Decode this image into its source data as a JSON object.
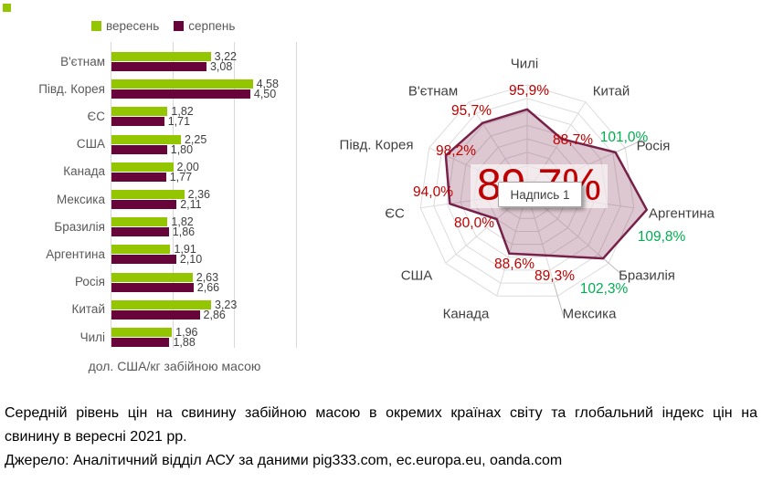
{
  "corner_mark": {
    "color": "#94C600"
  },
  "colors": {
    "september_green": "#94C600",
    "august_maroon": "#67053A",
    "radar_stroke": "#77214A",
    "radar_fill": "rgba(119,33,69,0.25)",
    "label_red": "#C00000",
    "label_green": "#00B050",
    "grid_gray": "#D9D9D9",
    "axis_text_gray": "#595959",
    "value_text_gray": "#404040"
  },
  "chart_data": [
    {
      "type": "bar",
      "orientation": "horizontal",
      "categories": [
        "В'єтнам",
        "Півд. Корея",
        "ЄС",
        "США",
        "Канада",
        "Мексика",
        "Бразилія",
        "Аргентина",
        "Росія",
        "Китай",
        "Чилі"
      ],
      "series": [
        {
          "name": "вересень",
          "color": "#94C600",
          "values": [
            3.22,
            4.58,
            1.82,
            2.25,
            2.0,
            2.36,
            1.82,
            1.91,
            2.63,
            3.23,
            1.96
          ]
        },
        {
          "name": "серпень",
          "color": "#67053A",
          "values": [
            3.08,
            4.5,
            1.71,
            1.8,
            1.77,
            2.11,
            1.86,
            2.1,
            2.66,
            2.86,
            1.88
          ]
        }
      ],
      "xlabel": "дол. США/кг забійною масою",
      "xlim": [
        0,
        6
      ],
      "gridlines": [
        0,
        2,
        4,
        6
      ],
      "value_labels_visible": true
    },
    {
      "type": "radar",
      "categories": [
        "Чилі",
        "Китай",
        "Росія",
        "Аргентина",
        "Бразилія",
        "Мексика",
        "Канада",
        "США",
        "ЄС",
        "Півд. Корея",
        "В'єтнам"
      ],
      "values": [
        95.9,
        88.7,
        101.0,
        109.8,
        102.3,
        89.3,
        88.6,
        80.0,
        94.0,
        98.2,
        95.7
      ],
      "value_suffix": "%",
      "scale": {
        "min": 65,
        "max": 105,
        "rings": 8
      },
      "center_value": "89,7%",
      "tooltip": "Надпись 1"
    }
  ],
  "caption": {
    "line1": "Середній рівень цін на свинину забійною масою в окремих країнах світу та глобальний індекс цін на",
    "line2": "свинину в вересні 2021 рр.",
    "source": "Джерело: Аналітичний відділ АСУ за даними pig333.com, ec.europa.eu, oanda.com"
  }
}
